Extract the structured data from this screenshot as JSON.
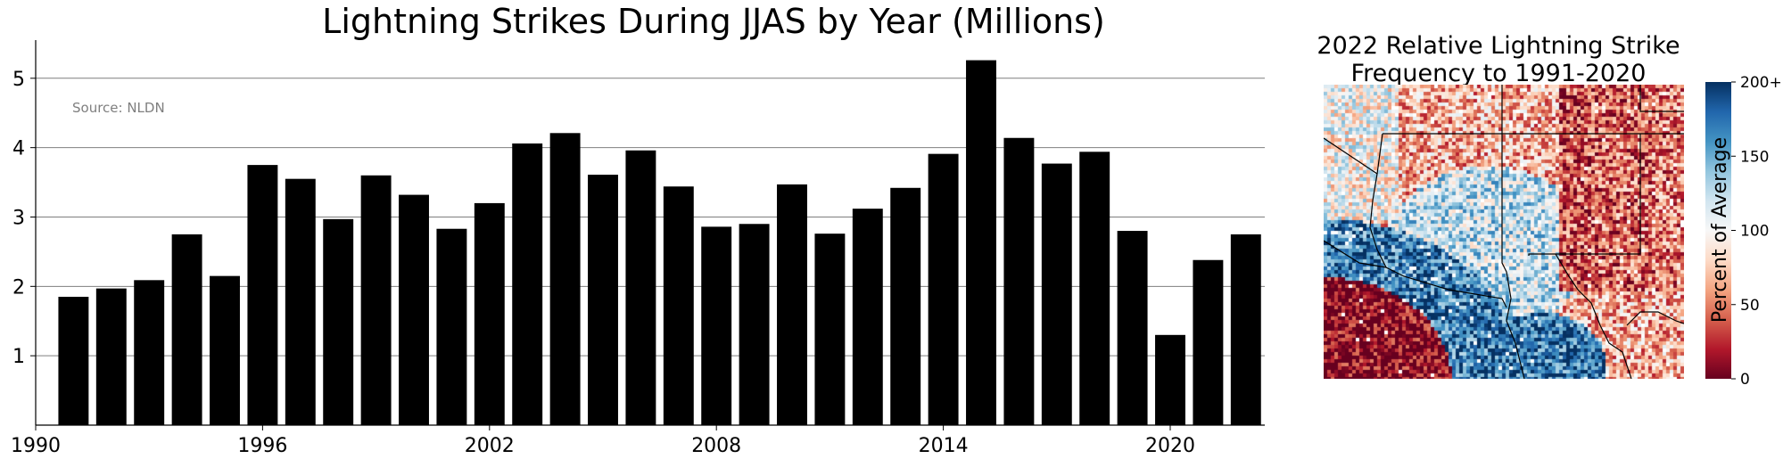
{
  "chart_data": [
    {
      "type": "bar",
      "title": "Lightning Strikes During JJAS by Year (Millions)",
      "annotation": "Source: NLDN",
      "xlabel": "",
      "ylabel": "",
      "x": [
        1991,
        1992,
        1993,
        1994,
        1995,
        1996,
        1997,
        1998,
        1999,
        2000,
        2001,
        2002,
        2003,
        2004,
        2005,
        2006,
        2007,
        2008,
        2009,
        2010,
        2011,
        2012,
        2013,
        2014,
        2015,
        2016,
        2017,
        2018,
        2019,
        2020,
        2021,
        2022
      ],
      "values": [
        1.85,
        1.97,
        2.09,
        2.75,
        2.15,
        3.75,
        3.55,
        2.97,
        3.6,
        3.32,
        2.83,
        3.2,
        4.06,
        4.21,
        3.61,
        3.96,
        3.44,
        2.86,
        2.9,
        3.47,
        2.76,
        3.12,
        3.42,
        3.91,
        5.26,
        4.14,
        3.77,
        3.94,
        2.8,
        1.3,
        2.38,
        2.75
      ],
      "xlim": [
        1990,
        2022.5
      ],
      "ylim": [
        0,
        5.55
      ],
      "xticks": [
        "1990",
        "1996",
        "2002",
        "2008",
        "2014",
        "2020"
      ],
      "xtick_values": [
        1990,
        1996,
        2002,
        2008,
        2014,
        2020
      ],
      "yticks": [
        "1",
        "2",
        "3",
        "4",
        "5"
      ],
      "ytick_values": [
        1,
        2,
        3,
        4,
        5
      ],
      "grid": "horizontal",
      "bar_color": "#000000"
    },
    {
      "type": "heatmap",
      "title_line1": "2022 Relative Lightning Strike",
      "title_line2": "Frequency to 1991-2020",
      "colorbar_label": "Percent of Average",
      "colorbar_ticks": [
        "0",
        "50",
        "100",
        "150",
        "200+"
      ],
      "colorbar_tick_values": [
        0,
        50,
        100,
        150,
        200
      ],
      "colorbar_range": [
        0,
        200
      ],
      "colormap": [
        "#67001f",
        "#b2182b",
        "#d6604d",
        "#f4a582",
        "#fddbc7",
        "#f7f7f7",
        "#d1e5f0",
        "#92c5de",
        "#4393c3",
        "#2166ac",
        "#053061"
      ]
    }
  ]
}
